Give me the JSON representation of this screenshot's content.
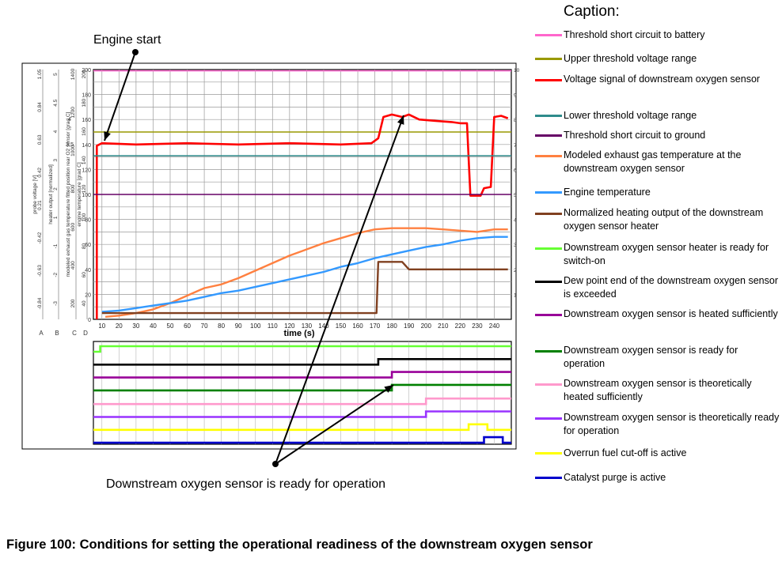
{
  "chart_data": {
    "type": "line",
    "xlabel": "time (s)",
    "xlim": [
      5,
      250
    ],
    "x_ticks": [
      10,
      20,
      30,
      40,
      50,
      60,
      70,
      80,
      90,
      100,
      110,
      120,
      130,
      140,
      150,
      160,
      170,
      180,
      190,
      200,
      210,
      220,
      230,
      240
    ],
    "axes": [
      {
        "letter": "A",
        "label": "probe voltage [V]",
        "ticks": [
          "-0.84",
          "-0.63",
          "-0.42",
          "0.21",
          "0.42",
          "0.63",
          "0.84",
          "1.05"
        ]
      },
      {
        "letter": "B",
        "label": "heater output [normalized]",
        "ticks": [
          "-3",
          "-2",
          "-1",
          "1",
          "2",
          "3",
          "4",
          "4.5",
          "5"
        ]
      },
      {
        "letter": "C",
        "label": "modeled exhaust gas temperature fitted position rear O2 sensor [grad C]",
        "ticks": [
          "200",
          "400",
          "600",
          "800",
          "1000",
          "1200",
          "1400"
        ]
      },
      {
        "letter": "D",
        "label": "engine temperature [grad C]",
        "ticks": [
          "40",
          "60",
          "80",
          "100",
          "120",
          "140",
          "160",
          "180",
          "200"
        ]
      }
    ],
    "y_ticks": [
      0,
      20,
      40,
      60,
      80,
      100,
      120,
      140,
      160,
      180,
      200
    ],
    "ylim": [
      0,
      200
    ],
    "right_ticks": [
      "1",
      "2",
      "3",
      "4",
      "5",
      "6",
      "7",
      "8",
      "9",
      "10"
    ],
    "left_ticks_extra": [
      "3.5",
      "4"
    ],
    "series": [
      {
        "name": "Threshold short circuit to battery",
        "color": "#ff66cc",
        "points": [
          [
            5,
            199
          ],
          [
            250,
            199
          ]
        ]
      },
      {
        "name": "Upper threshold voltage range",
        "color": "#999900",
        "points": [
          [
            5,
            150
          ],
          [
            250,
            150
          ]
        ]
      },
      {
        "name": "Voltage signal of downstream oxygen sensor",
        "color": "#ff0000",
        "points": [
          [
            7,
            0
          ],
          [
            7,
            139
          ],
          [
            10,
            141
          ],
          [
            30,
            140
          ],
          [
            60,
            141
          ],
          [
            90,
            140
          ],
          [
            120,
            141
          ],
          [
            150,
            140
          ],
          [
            168,
            141
          ],
          [
            172,
            145
          ],
          [
            175,
            162
          ],
          [
            180,
            164
          ],
          [
            186,
            162
          ],
          [
            190,
            164
          ],
          [
            196,
            160
          ],
          [
            205,
            159
          ],
          [
            215,
            158
          ],
          [
            220,
            157
          ],
          [
            224,
            157
          ],
          [
            226,
            99
          ],
          [
            232,
            99
          ],
          [
            234,
            105
          ],
          [
            238,
            106
          ],
          [
            240,
            162
          ],
          [
            244,
            163
          ],
          [
            248,
            161
          ]
        ]
      },
      {
        "name": "Lower threshold voltage range",
        "color": "#2e8b8b",
        "points": [
          [
            5,
            131
          ],
          [
            250,
            131
          ]
        ]
      },
      {
        "name": "Threshold short circuit to ground",
        "color": "#660066",
        "points": [
          [
            5,
            100
          ],
          [
            250,
            100
          ]
        ]
      },
      {
        "name": "Modeled exhaust gas temperature at the downstream oxygen sensor",
        "color": "#ff8040",
        "points": [
          [
            12,
            2
          ],
          [
            20,
            3
          ],
          [
            30,
            5
          ],
          [
            40,
            8
          ],
          [
            50,
            13
          ],
          [
            60,
            19
          ],
          [
            70,
            25
          ],
          [
            80,
            28
          ],
          [
            90,
            33
          ],
          [
            100,
            39
          ],
          [
            110,
            45
          ],
          [
            120,
            51
          ],
          [
            130,
            56
          ],
          [
            140,
            61
          ],
          [
            150,
            65
          ],
          [
            160,
            69
          ],
          [
            170,
            72
          ],
          [
            180,
            73
          ],
          [
            190,
            73
          ],
          [
            200,
            73
          ],
          [
            210,
            72
          ],
          [
            220,
            71
          ],
          [
            230,
            70
          ],
          [
            240,
            72
          ],
          [
            248,
            72
          ]
        ]
      },
      {
        "name": "Engine temperature",
        "color": "#3399ff",
        "points": [
          [
            10,
            6
          ],
          [
            20,
            7
          ],
          [
            30,
            9
          ],
          [
            40,
            11
          ],
          [
            50,
            13
          ],
          [
            60,
            15
          ],
          [
            70,
            18
          ],
          [
            80,
            21
          ],
          [
            90,
            23
          ],
          [
            100,
            26
          ],
          [
            110,
            29
          ],
          [
            120,
            32
          ],
          [
            130,
            35
          ],
          [
            140,
            38
          ],
          [
            150,
            42
          ],
          [
            160,
            45
          ],
          [
            170,
            49
          ],
          [
            180,
            52
          ],
          [
            190,
            55
          ],
          [
            200,
            58
          ],
          [
            210,
            60
          ],
          [
            220,
            63
          ],
          [
            230,
            65
          ],
          [
            240,
            66
          ],
          [
            248,
            66
          ]
        ]
      },
      {
        "name": "Normalized heating output of the downstream oxygen sensor heater",
        "color": "#804020",
        "points": [
          [
            10,
            5
          ],
          [
            171,
            5
          ],
          [
            172,
            46
          ],
          [
            186,
            46
          ],
          [
            190,
            40
          ],
          [
            248,
            40
          ]
        ]
      }
    ],
    "status_series": [
      {
        "name": "Downstream oxygen sensor heater is ready for switch-on",
        "color": "#66ff33",
        "points": [
          [
            5,
            0
          ],
          [
            9,
            0
          ],
          [
            9,
            1
          ],
          [
            250,
            1
          ]
        ]
      },
      {
        "name": "Dew point end of the downstream oxygen sensor is exceeded",
        "color": "#000000",
        "points": [
          [
            5,
            0
          ],
          [
            172,
            0
          ],
          [
            172,
            1
          ],
          [
            250,
            1
          ]
        ]
      },
      {
        "name": "Downstream oxygen sensor is heated sufficiently",
        "color": "#990099",
        "points": [
          [
            5,
            0
          ],
          [
            180,
            0
          ],
          [
            180,
            1
          ],
          [
            250,
            1
          ]
        ]
      },
      {
        "name": "Downstream oxygen sensor is ready for operation",
        "color": "#008000",
        "points": [
          [
            5,
            0
          ],
          [
            180,
            0
          ],
          [
            180,
            1
          ],
          [
            250,
            1
          ]
        ]
      },
      {
        "name": "Downstream oxygen sensor is theoretically heated sufficiently",
        "color": "#ff99cc",
        "points": [
          [
            5,
            0
          ],
          [
            200,
            0
          ],
          [
            200,
            1
          ],
          [
            250,
            1
          ]
        ]
      },
      {
        "name": "Downstream oxygen sensor is theoretically ready for operation",
        "color": "#9933ff",
        "points": [
          [
            5,
            0
          ],
          [
            200,
            0
          ],
          [
            200,
            1
          ],
          [
            250,
            1
          ]
        ]
      },
      {
        "name": "Overrun fuel cut-off is active",
        "color": "#ffff00",
        "points": [
          [
            5,
            0
          ],
          [
            225,
            0
          ],
          [
            225,
            1
          ],
          [
            236,
            1
          ],
          [
            236,
            0
          ],
          [
            250,
            0
          ]
        ]
      },
      {
        "name": "Catalyst purge is active",
        "color": "#0000cc",
        "points": [
          [
            5,
            0
          ],
          [
            234,
            0
          ],
          [
            234,
            1
          ],
          [
            245,
            1
          ],
          [
            245,
            0
          ],
          [
            250,
            0
          ]
        ]
      }
    ]
  },
  "legend": {
    "title": "Caption:",
    "items": [
      {
        "label": "Threshold short circuit to battery",
        "color": "#ff66cc"
      },
      {
        "label": "Upper threshold voltage range",
        "color": "#999900"
      },
      {
        "label": "Voltage signal of downstream oxygen sensor",
        "color": "#ff0000"
      },
      {
        "label": "Lower threshold voltage range",
        "color": "#2e8b8b"
      },
      {
        "label": "Threshold short circuit to ground",
        "color": "#660066"
      },
      {
        "label": "Modeled exhaust gas temperature at the downstream oxygen sensor",
        "color": "#ff8040"
      },
      {
        "label": "Engine temperature",
        "color": "#3399ff"
      },
      {
        "label": "Normalized heating output of the downstream oxygen sensor heater",
        "color": "#804020"
      },
      {
        "label": "Downstream oxygen sensor heater is ready for switch-on",
        "color": "#66ff33"
      },
      {
        "label": "Dew point end of the downstream oxygen sensor is exceeded",
        "color": "#000000"
      },
      {
        "label": "Downstream oxygen sensor is heated sufficiently",
        "color": "#990099"
      },
      {
        "label": "Downstream oxygen sensor is ready for operation",
        "color": "#008000"
      },
      {
        "label": "Downstream oxygen sensor is theoretically heated sufficiently",
        "color": "#ff99cc"
      },
      {
        "label": "Downstream oxygen sensor is theoretically ready for operation",
        "color": "#9933ff"
      },
      {
        "label": "Overrun fuel cut-off is active",
        "color": "#ffff00"
      },
      {
        "label": "Catalyst purge is active",
        "color": "#0000cc"
      }
    ]
  },
  "annotations": {
    "engine_start": "Engine start",
    "ready_for_operation": "Downstream oxygen sensor is ready for operation"
  },
  "caption": "Figure 100: Conditions for setting the operational readiness of the downstream oxygen sensor"
}
